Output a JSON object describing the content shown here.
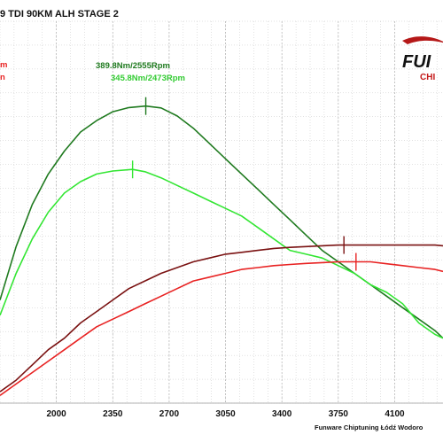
{
  "header": {
    "title": "9 TDI 90KM ALH STAGE 2"
  },
  "logo": {
    "text_main": "FUI",
    "text_sub": "CHI"
  },
  "footer": {
    "text": "Funware Chiptuning Łódź Wodoro"
  },
  "left_fragments": {
    "a": "m",
    "b": "n"
  },
  "colors": {
    "tuned_torque": "#1f7a1f",
    "stock_torque": "#33e633",
    "tuned_power": "#7a1212",
    "stock_power": "#e82222",
    "grid": "#c4c4c4"
  },
  "chart_data": {
    "type": "line",
    "title": "9 TDI 90KM ALH STAGE 2",
    "xlim": [
      1650,
      4400
    ],
    "ylim": [
      0,
      1
    ],
    "grid": true,
    "x_ticks": [
      "2000",
      "2350",
      "2700",
      "3050",
      "3400",
      "3750",
      "4100"
    ],
    "x_tick_values": [
      2000,
      2350,
      2700,
      3050,
      3400,
      3750,
      4100
    ],
    "annotations": [
      {
        "text": "389.8Nm/2555Rpm",
        "series": "tuned_torque",
        "x": 2555
      },
      {
        "text": "345.8Nm/2473Rpm",
        "series": "stock_torque",
        "x": 2473
      }
    ],
    "series": [
      {
        "key": "tuned_torque",
        "color": "#1f7a1f",
        "x": [
          1650,
          1750,
          1850,
          1950,
          2050,
          2150,
          2250,
          2350,
          2450,
          2555,
          2650,
          2750,
          2850,
          2950,
          3050,
          3150,
          3250,
          3350,
          3450,
          3550,
          3650,
          3750,
          3850,
          3950,
          4050,
          4150,
          4250,
          4350,
          4400
        ],
        "y": [
          0.27,
          0.41,
          0.52,
          0.6,
          0.66,
          0.71,
          0.74,
          0.763,
          0.774,
          0.778,
          0.773,
          0.752,
          0.72,
          0.68,
          0.64,
          0.6,
          0.56,
          0.52,
          0.48,
          0.44,
          0.4,
          0.37,
          0.34,
          0.31,
          0.28,
          0.25,
          0.22,
          0.19,
          0.17
        ]
      },
      {
        "key": "stock_torque",
        "color": "#33e633",
        "x": [
          1650,
          1750,
          1850,
          1950,
          2050,
          2150,
          2250,
          2350,
          2473,
          2550,
          2650,
          2750,
          2850,
          2950,
          3050,
          3150,
          3250,
          3350,
          3450,
          3550,
          3650,
          3750,
          3850,
          3950,
          4050,
          4150,
          4250,
          4350,
          4400
        ],
        "y": [
          0.23,
          0.34,
          0.43,
          0.5,
          0.55,
          0.58,
          0.6,
          0.608,
          0.612,
          0.606,
          0.59,
          0.57,
          0.55,
          0.53,
          0.51,
          0.49,
          0.46,
          0.43,
          0.4,
          0.39,
          0.38,
          0.36,
          0.34,
          0.31,
          0.29,
          0.26,
          0.21,
          0.18,
          0.17
        ]
      },
      {
        "key": "tuned_power",
        "color": "#7a1212",
        "x": [
          1650,
          1750,
          1850,
          1950,
          2050,
          2150,
          2250,
          2350,
          2450,
          2550,
          2650,
          2750,
          2850,
          2950,
          3050,
          3150,
          3250,
          3350,
          3450,
          3550,
          3650,
          3750,
          3850,
          3950,
          4050,
          4150,
          4250,
          4350,
          4400
        ],
        "y": [
          0.03,
          0.06,
          0.1,
          0.14,
          0.17,
          0.21,
          0.24,
          0.27,
          0.3,
          0.32,
          0.34,
          0.355,
          0.37,
          0.38,
          0.39,
          0.395,
          0.4,
          0.405,
          0.408,
          0.41,
          0.412,
          0.414,
          0.414,
          0.414,
          0.414,
          0.414,
          0.414,
          0.414,
          0.412
        ]
      },
      {
        "key": "stock_power",
        "color": "#e82222",
        "x": [
          1650,
          1750,
          1850,
          1950,
          2050,
          2150,
          2250,
          2350,
          2450,
          2550,
          2650,
          2750,
          2850,
          2950,
          3050,
          3150,
          3250,
          3350,
          3450,
          3550,
          3650,
          3750,
          3850,
          3950,
          4050,
          4150,
          4250,
          4350,
          4400
        ],
        "y": [
          0.02,
          0.05,
          0.08,
          0.11,
          0.14,
          0.17,
          0.2,
          0.22,
          0.24,
          0.26,
          0.28,
          0.3,
          0.32,
          0.33,
          0.34,
          0.35,
          0.355,
          0.36,
          0.363,
          0.366,
          0.368,
          0.37,
          0.37,
          0.37,
          0.365,
          0.36,
          0.355,
          0.35,
          0.345
        ]
      }
    ],
    "markers": [
      {
        "series": "tuned_torque",
        "x": 2555
      },
      {
        "series": "stock_torque",
        "x": 2473
      },
      {
        "series": "tuned_power",
        "x": 3785
      },
      {
        "series": "stock_power",
        "x": 3860
      }
    ]
  }
}
